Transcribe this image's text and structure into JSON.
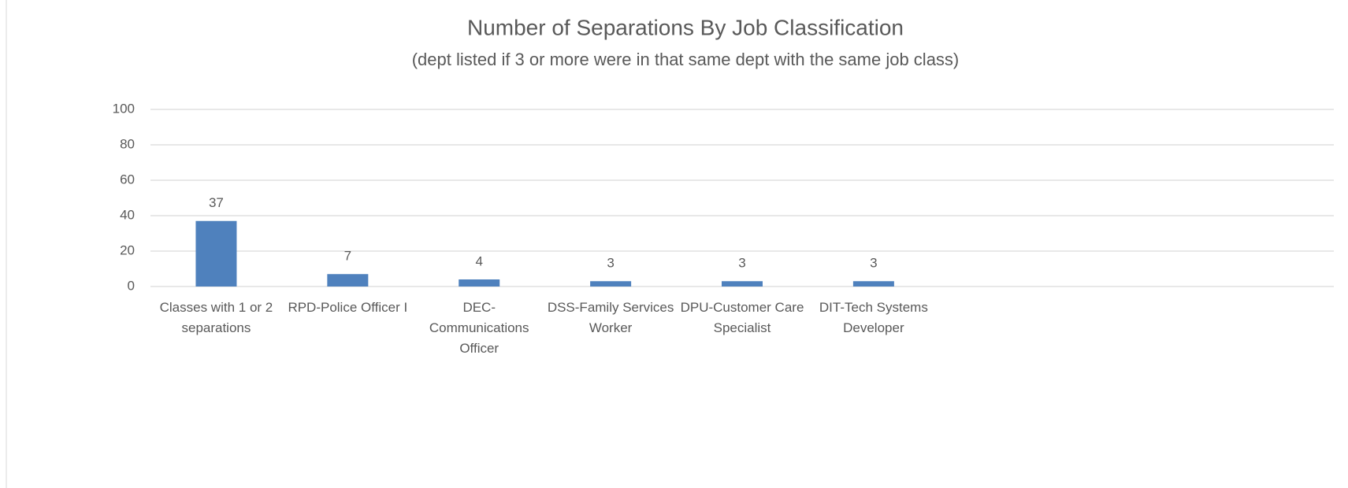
{
  "chart_data": {
    "type": "bar",
    "title": "Number of Separations By Job Classification",
    "subtitle": "(dept listed if 3 or more were in that same dept with the same job class)",
    "categories": [
      "Classes with 1 or 2 separations",
      "RPD-Police Officer I",
      "DEC-Communications Officer",
      "DSS-Family Services Worker",
      "DPU-Customer Care Specialist",
      "DIT-Tech Systems Developer",
      null,
      null,
      null
    ],
    "values": [
      37,
      7,
      4,
      3,
      3,
      3,
      null,
      null,
      null
    ],
    "color": "#4f81bd",
    "ylim": [
      0,
      100
    ],
    "yticks": [
      0,
      20,
      40,
      60,
      80,
      100
    ],
    "grid": true
  }
}
